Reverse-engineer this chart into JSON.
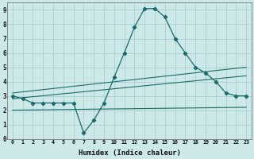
{
  "xlabel": "Humidex (Indice chaleur)",
  "bg_color": "#cce8e8",
  "grid_color": "#aacfcf",
  "line_color": "#1a6b6b",
  "xlim": [
    -0.5,
    23.5
  ],
  "ylim": [
    0,
    9.5
  ],
  "xticks": [
    0,
    1,
    2,
    3,
    4,
    5,
    6,
    7,
    8,
    9,
    10,
    11,
    12,
    13,
    14,
    15,
    16,
    17,
    18,
    19,
    20,
    21,
    22,
    23
  ],
  "yticks": [
    0,
    1,
    2,
    3,
    4,
    5,
    6,
    7,
    8,
    9
  ],
  "main_x": [
    0,
    1,
    2,
    3,
    4,
    5,
    6,
    7,
    8,
    9,
    10,
    11,
    12,
    13,
    14,
    15,
    16,
    17,
    18,
    19,
    20,
    21,
    22,
    23
  ],
  "main_y": [
    3.0,
    2.8,
    2.5,
    2.5,
    2.5,
    2.5,
    2.5,
    0.4,
    1.3,
    2.5,
    4.3,
    6.0,
    7.8,
    9.1,
    9.1,
    8.5,
    7.0,
    6.0,
    5.0,
    4.6,
    4.0,
    3.2,
    3.0,
    3.0
  ],
  "trend1_x": [
    0,
    23
  ],
  "trend1_y": [
    3.2,
    5.0
  ],
  "trend2_x": [
    0,
    23
  ],
  "trend2_y": [
    2.8,
    4.4
  ],
  "trend3_x": [
    0,
    23
  ],
  "trend3_y": [
    2.0,
    2.2
  ]
}
